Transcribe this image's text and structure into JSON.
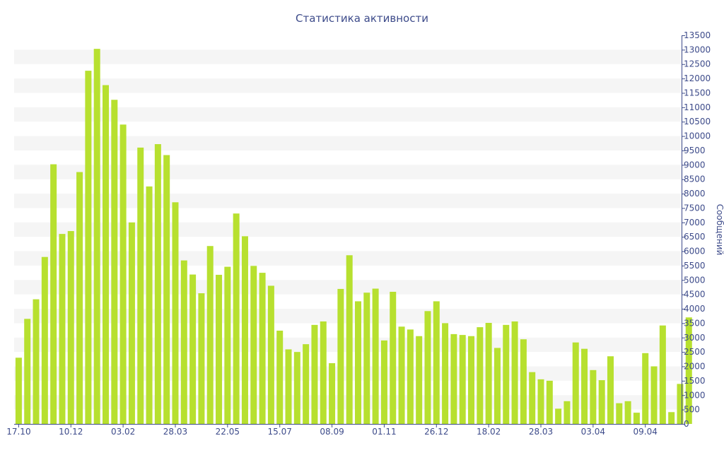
{
  "chart_data": {
    "type": "bar",
    "title": "Статистика активности",
    "xlabel": "",
    "ylabel": "Сообщений",
    "ylim": [
      0,
      13500
    ],
    "y_ticks": [
      0,
      500,
      1000,
      1500,
      2000,
      2500,
      3000,
      3500,
      4000,
      4500,
      5000,
      5500,
      6000,
      6500,
      7000,
      7500,
      8000,
      8500,
      9000,
      9500,
      10000,
      10500,
      11000,
      11500,
      12000,
      12500,
      13000,
      13500
    ],
    "x_tick_labels": [
      {
        "label": "17.10",
        "index": 0
      },
      {
        "label": "10.12",
        "index": 6
      },
      {
        "label": "03.02",
        "index": 12
      },
      {
        "label": "28.03",
        "index": 18
      },
      {
        "label": "22.05",
        "index": 24
      },
      {
        "label": "15.07",
        "index": 30
      },
      {
        "label": "08.09",
        "index": 36
      },
      {
        "label": "01.11",
        "index": 42
      },
      {
        "label": "26.12",
        "index": 48
      },
      {
        "label": "18.02",
        "index": 54
      },
      {
        "label": "28.03",
        "index": 60
      },
      {
        "label": "03.04",
        "index": 66
      },
      {
        "label": "09.04",
        "index": 72
      }
    ],
    "values": [
      2300,
      3650,
      4330,
      5800,
      9020,
      6600,
      6700,
      8750,
      12270,
      13030,
      11770,
      11260,
      10400,
      7000,
      9600,
      8250,
      9720,
      9340,
      7700,
      5680,
      5190,
      4540,
      6180,
      5180,
      5460,
      7310,
      6520,
      5490,
      5250,
      4800,
      3240,
      2590,
      2500,
      2770,
      3440,
      3560,
      2110,
      4690,
      5860,
      4260,
      4560,
      4700,
      2900,
      4590,
      3380,
      3280,
      3050,
      3920,
      4260,
      3500,
      3120,
      3090,
      3050,
      3360,
      3510,
      2640,
      3440,
      3560,
      2940,
      1800,
      1550,
      1500,
      530,
      790,
      2830,
      2610,
      1870,
      1520,
      2350,
      720,
      790,
      390,
      2460,
      2000,
      3420,
      410,
      1390,
      3700
    ],
    "grid": true,
    "grid_style": "alternating horizontal bands",
    "y_axis_side": "right",
    "colors": {
      "bar": "#b7e02f",
      "text": "#3d4b8a",
      "axis": "#3d4b8a",
      "band": "#f5f5f5",
      "background": "#ffffff"
    }
  }
}
